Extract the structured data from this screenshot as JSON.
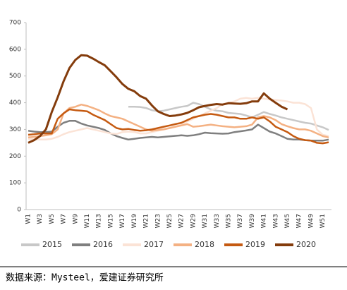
{
  "chart_data": {
    "type": "line",
    "categories": [
      "W1",
      null,
      "W3",
      null,
      "W5",
      null,
      "W7",
      null,
      "W9",
      null,
      "W11",
      null,
      "W13",
      null,
      "W15",
      null,
      "W17",
      null,
      "W19",
      null,
      "W21",
      null,
      "W23",
      null,
      "W25",
      null,
      "W27",
      null,
      "W29",
      null,
      "W31",
      null,
      "W33",
      null,
      "W35",
      null,
      "W37",
      null,
      "W39",
      null,
      "W41",
      null,
      "W43",
      null,
      "W45",
      null,
      "W47",
      null,
      "W49",
      null,
      "W51",
      null
    ],
    "ylim": [
      0,
      700
    ],
    "yticks": [
      0,
      100,
      200,
      300,
      400,
      500,
      600,
      700
    ],
    "grid": false,
    "legend": "bottom",
    "series": [
      {
        "name": "2015",
        "color": "#c8c8c8",
        "values": [
          null,
          null,
          null,
          null,
          null,
          null,
          null,
          null,
          null,
          null,
          null,
          null,
          null,
          null,
          null,
          null,
          null,
          385,
          385,
          384,
          380,
          372,
          368,
          370,
          375,
          380,
          385,
          388,
          400,
          395,
          385,
          375,
          370,
          368,
          362,
          360,
          358,
          352,
          345,
          355,
          365,
          358,
          352,
          345,
          340,
          335,
          330,
          325,
          322,
          315,
          308,
          298
        ]
      },
      {
        "name": "2016",
        "color": "#7f7f7f",
        "values": [
          295,
          292,
          290,
          290,
          292,
          310,
          325,
          332,
          332,
          322,
          315,
          310,
          305,
          298,
          285,
          275,
          268,
          262,
          265,
          268,
          270,
          272,
          270,
          272,
          274,
          276,
          278,
          276,
          278,
          282,
          288,
          286,
          285,
          284,
          285,
          290,
          293,
          296,
          300,
          318,
          305,
          292,
          285,
          275,
          265,
          262,
          262,
          260,
          258,
          258,
          258,
          262
        ]
      },
      {
        "name": "2017",
        "color": "#fbe3d6",
        "values": [
          265,
          263,
          262,
          262,
          265,
          272,
          282,
          290,
          295,
          300,
          305,
          300,
          295,
          290,
          285,
          283,
          290,
          292,
          290,
          285,
          285,
          290,
          295,
          300,
          305,
          310,
          320,
          330,
          340,
          350,
          360,
          370,
          380,
          395,
          400,
          405,
          415,
          418,
          415,
          418,
          415,
          412,
          410,
          408,
          405,
          400,
          400,
          395,
          380,
          300,
          280,
          275
        ]
      },
      {
        "name": "2018",
        "color": "#f4b183",
        "values": [
          270,
          272,
          275,
          278,
          282,
          300,
          360,
          380,
          385,
          393,
          388,
          380,
          372,
          360,
          350,
          345,
          340,
          330,
          320,
          310,
          300,
          295,
          298,
          300,
          305,
          310,
          315,
          320,
          310,
          312,
          315,
          318,
          315,
          312,
          310,
          308,
          310,
          312,
          318,
          345,
          350,
          345,
          335,
          320,
          312,
          305,
          300,
          300,
          295,
          285,
          275,
          270
        ]
      },
      {
        "name": "2019",
        "color": "#c55a11",
        "values": [
          280,
          282,
          285,
          285,
          285,
          340,
          360,
          375,
          372,
          370,
          368,
          355,
          345,
          335,
          320,
          305,
          300,
          302,
          298,
          295,
          297,
          300,
          305,
          310,
          315,
          320,
          325,
          335,
          345,
          350,
          355,
          358,
          355,
          350,
          345,
          345,
          340,
          340,
          345,
          340,
          345,
          330,
          310,
          300,
          290,
          275,
          265,
          260,
          258,
          250,
          248,
          252
        ]
      },
      {
        "name": "2020",
        "color": "#843c0c",
        "values": [
          250,
          260,
          275,
          300,
          365,
          420,
          480,
          530,
          560,
          578,
          576,
          565,
          552,
          540,
          518,
          495,
          470,
          452,
          443,
          425,
          415,
          390,
          368,
          358,
          350,
          352,
          356,
          362,
          372,
          383,
          388,
          392,
          395,
          393,
          398,
          397,
          396,
          398,
          405,
          405,
          435,
          415,
          400,
          385,
          375,
          null,
          null,
          null,
          null,
          null,
          null,
          null
        ]
      }
    ],
    "source": "数据来源：Mysteel，爱建证券研究所"
  }
}
